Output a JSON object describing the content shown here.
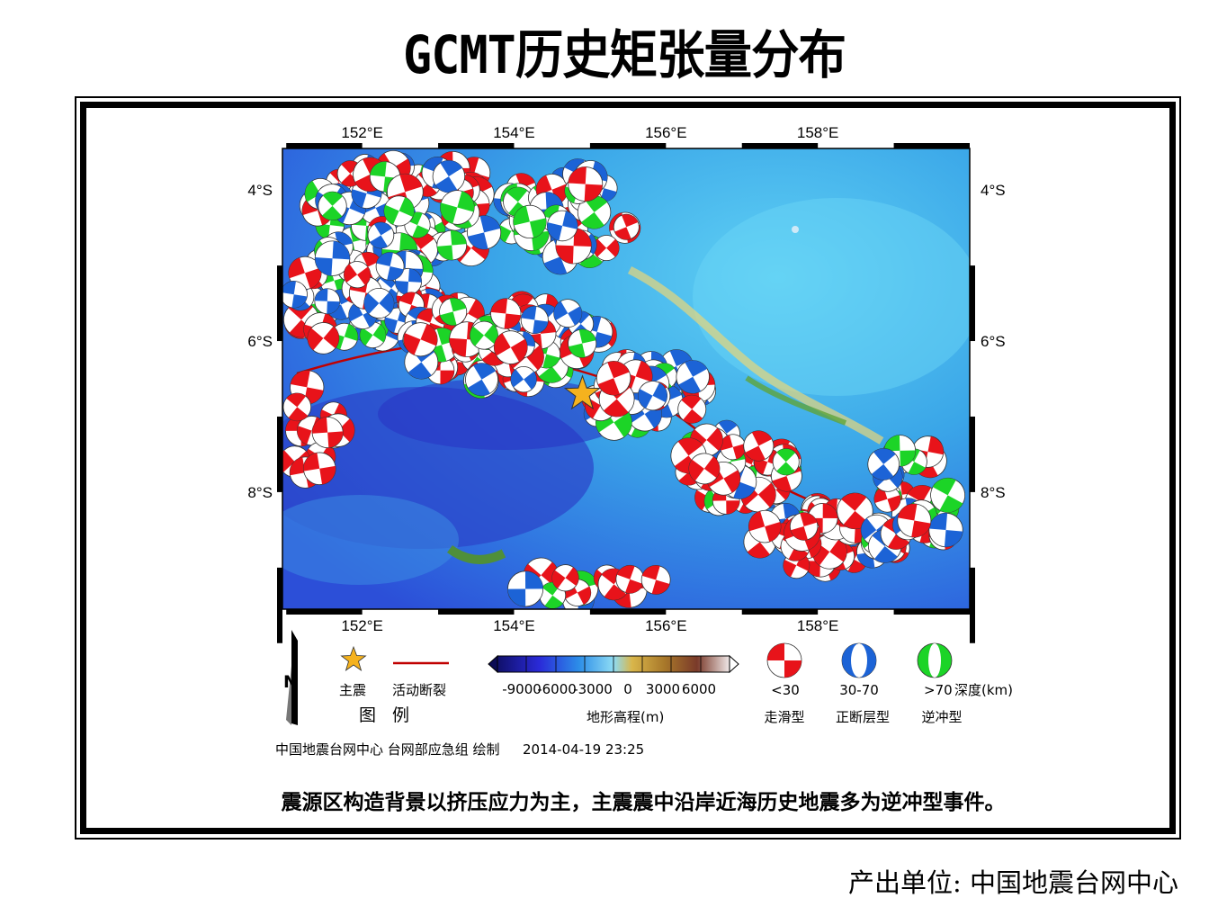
{
  "title": "GCMT历史矩张量分布",
  "map": {
    "lon_labels": [
      "152°E",
      "154°E",
      "156°E",
      "158°E"
    ],
    "lon_values": [
      152,
      154,
      156,
      158
    ],
    "lat_labels": [
      "4°S",
      "6°S",
      "8°S"
    ],
    "lat_values": [
      -4,
      -6,
      -8
    ],
    "lon_range": [
      150.95,
      160.0
    ],
    "lat_range": [
      -3.45,
      -9.55
    ],
    "main_shock": {
      "lon": 154.9,
      "lat": -6.7
    },
    "colors": {
      "strike_slip": "#e8131a",
      "normal": "#1c63d6",
      "thrust": "#1cd427",
      "main_shock": "#f5b21e",
      "fault": "#c00000"
    }
  },
  "legend": {
    "north_label": "N",
    "star_label": "主震",
    "fault_label": "活动断裂",
    "legend_title": "图 例",
    "scale_ticks": [
      "-9000",
      "-6000",
      "-3000",
      "0",
      "3000",
      "6000"
    ],
    "scale_title": "地形高程(m)",
    "depth_labels": [
      "<30",
      "30-70",
      ">70"
    ],
    "depth_unit": "深度(km)",
    "mech_labels": [
      "走滑型",
      "正断层型",
      "逆冲型"
    ]
  },
  "credit": "中国地震台网中心 台网部应急组 绘制",
  "timestamp": "2014-04-19 23:25",
  "caption": "震源区构造背景以挤压应力为主，主震震中沿岸近海历史地震多为逆冲型事件。",
  "producer": "产出单位: 中国地震台网中心"
}
